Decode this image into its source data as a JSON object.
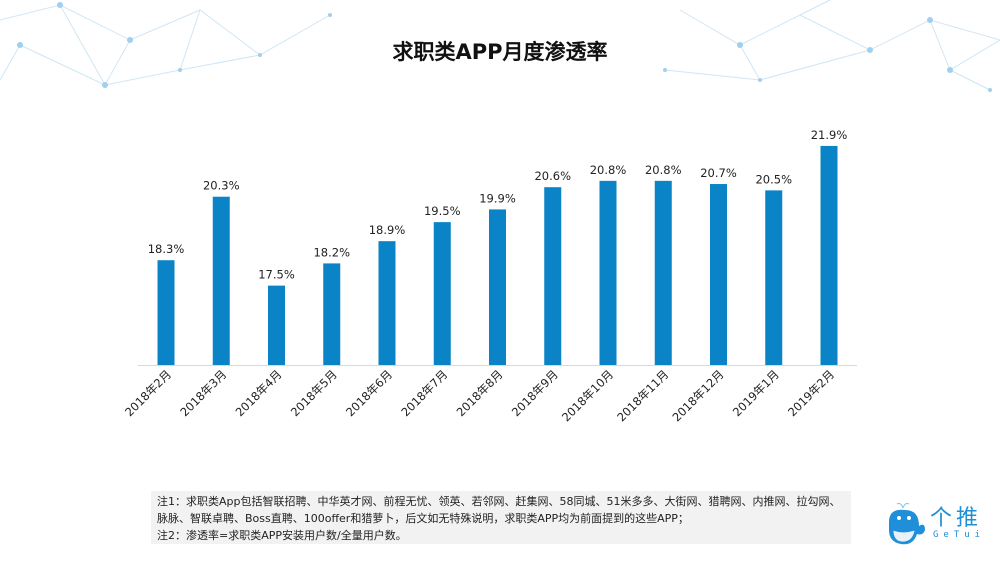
{
  "chart_data": {
    "type": "bar",
    "title": "求职类APP月度渗透率",
    "categories": [
      "2018年2月",
      "2018年3月",
      "2018年4月",
      "2018年5月",
      "2018年6月",
      "2018年7月",
      "2018年8月",
      "2018年9月",
      "2018年10月",
      "2018年11月",
      "2018年12月",
      "2019年1月",
      "2019年2月"
    ],
    "values": [
      18.3,
      20.3,
      17.5,
      18.2,
      18.9,
      19.5,
      19.9,
      20.6,
      20.8,
      20.8,
      20.7,
      20.5,
      21.9
    ],
    "data_labels": [
      "18.3%",
      "20.3%",
      "17.5%",
      "18.2%",
      "18.9%",
      "19.5%",
      "19.9%",
      "20.6%",
      "20.8%",
      "20.8%",
      "20.7%",
      "20.5%",
      "21.9%"
    ],
    "ylim": [
      15,
      23
    ],
    "grid": false,
    "bar_color": "#0a84c6",
    "xlabel": "",
    "ylabel": ""
  },
  "notes": [
    "注1：求职类App包括智联招聘、中华英才网、前程无忧、领英、若邻网、赶集网、58同城、51米多多、大街网、猎聘网、内推网、拉勾网、脉脉、智联卓聘、Boss直聘、100offer和猎萝卜，后文如无特殊说明，求职类APP均为前面提到的这些APP；",
    "注2：渗透率=求职类APP安装用户数/全量用户数。"
  ],
  "logo": {
    "text": "个推",
    "sub": "GeTui",
    "color": "#1e8fd8"
  }
}
